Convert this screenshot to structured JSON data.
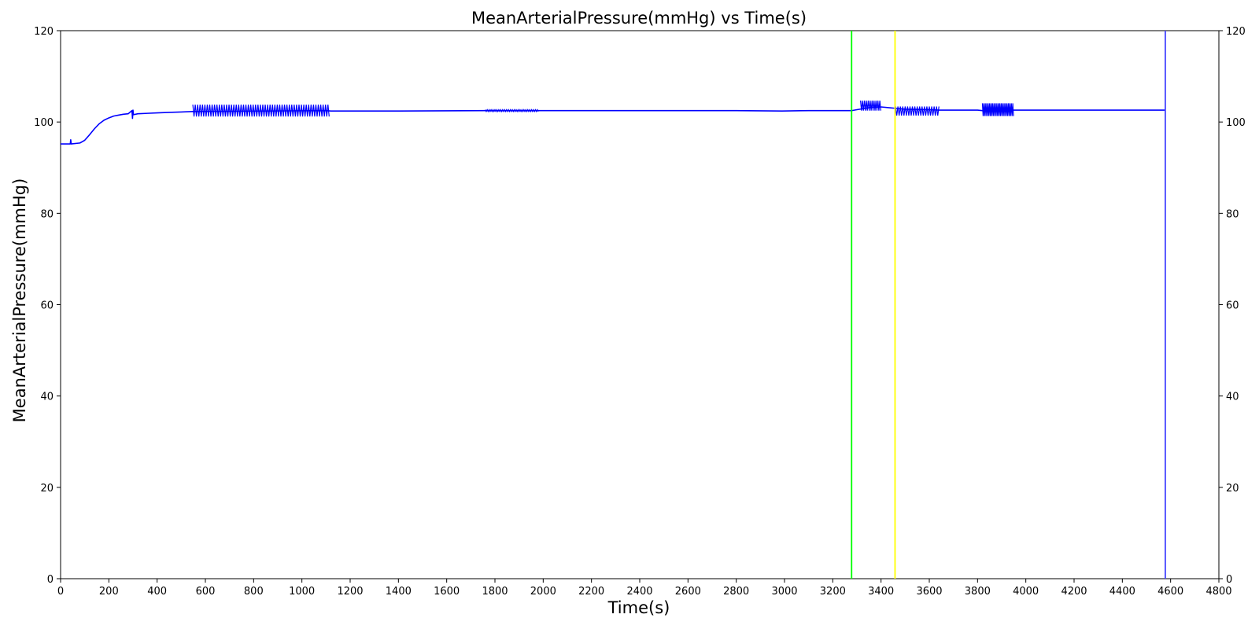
{
  "chart_data": {
    "type": "line",
    "title": "MeanArterialPressure(mmHg) vs Time(s)",
    "xlabel": "Time(s)",
    "ylabel": "MeanArterialPressure(mmHg)",
    "xlim": [
      0,
      4800
    ],
    "ylim": [
      0,
      120
    ],
    "x_ticks": [
      0,
      200,
      400,
      600,
      800,
      1000,
      1200,
      1400,
      1600,
      1800,
      2000,
      2200,
      2400,
      2600,
      2800,
      3000,
      3200,
      3400,
      3600,
      3800,
      4000,
      4200,
      4400,
      4600,
      4800
    ],
    "y_ticks": [
      0,
      20,
      40,
      60,
      80,
      100,
      120
    ],
    "right_y_ticks": [
      0,
      20,
      40,
      60,
      80,
      100,
      120
    ],
    "grid": false,
    "series": [
      {
        "color": "#0000ff",
        "x": [
          0,
          40,
          42,
          44,
          80,
          100,
          120,
          140,
          160,
          180,
          200,
          220,
          240,
          260,
          280,
          296,
          298,
          300,
          302,
          320,
          360,
          400,
          450,
          500,
          548,
          1100,
          1120,
          1200,
          1400,
          1760,
          2000,
          2200,
          2400,
          2600,
          2800,
          2990,
          3100,
          3280,
          3300,
          3360,
          3400,
          3440,
          3460,
          3500,
          3600,
          3640,
          3700,
          3800,
          3820,
          3950,
          3970,
          4000,
          4200,
          4400,
          4580
        ],
        "y": [
          95.2,
          95.2,
          96.1,
          95.2,
          95.4,
          96.0,
          97.2,
          98.5,
          99.6,
          100.4,
          100.9,
          101.3,
          101.5,
          101.7,
          101.8,
          102.5,
          100.8,
          102.6,
          101.6,
          101.8,
          101.9,
          102.0,
          102.1,
          102.2,
          102.3,
          102.5,
          102.4,
          102.4,
          102.4,
          102.5,
          102.5,
          102.5,
          102.5,
          102.5,
          102.5,
          102.4,
          102.5,
          102.5,
          102.7,
          103.2,
          103.3,
          103.1,
          103.0,
          102.8,
          102.7,
          102.6,
          102.6,
          102.6,
          102.5,
          102.6,
          102.6,
          102.6,
          102.6,
          102.6,
          102.6
        ]
      }
    ],
    "oscillation_bands": [
      {
        "x0": 548,
        "x1": 1115,
        "center": 102.5,
        "amplitude": 1.3,
        "period": 10
      },
      {
        "x0": 1760,
        "x1": 1980,
        "center": 102.5,
        "amplitude": 0.2,
        "period": 8
      },
      {
        "x0": 3315,
        "x1": 3400,
        "center": 103.6,
        "amplitude": 1.1,
        "period": 8
      },
      {
        "x0": 3460,
        "x1": 3640,
        "center": 102.4,
        "amplitude": 1.0,
        "period": 10
      },
      {
        "x0": 3820,
        "x1": 3950,
        "center": 102.7,
        "amplitude": 1.4,
        "period": 6
      }
    ],
    "vertical_lines": [
      {
        "x": 3278,
        "color": "#00ff00"
      },
      {
        "x": 3458,
        "color": "#ffff00"
      },
      {
        "x": 4578,
        "color": "#4444ff"
      }
    ]
  }
}
